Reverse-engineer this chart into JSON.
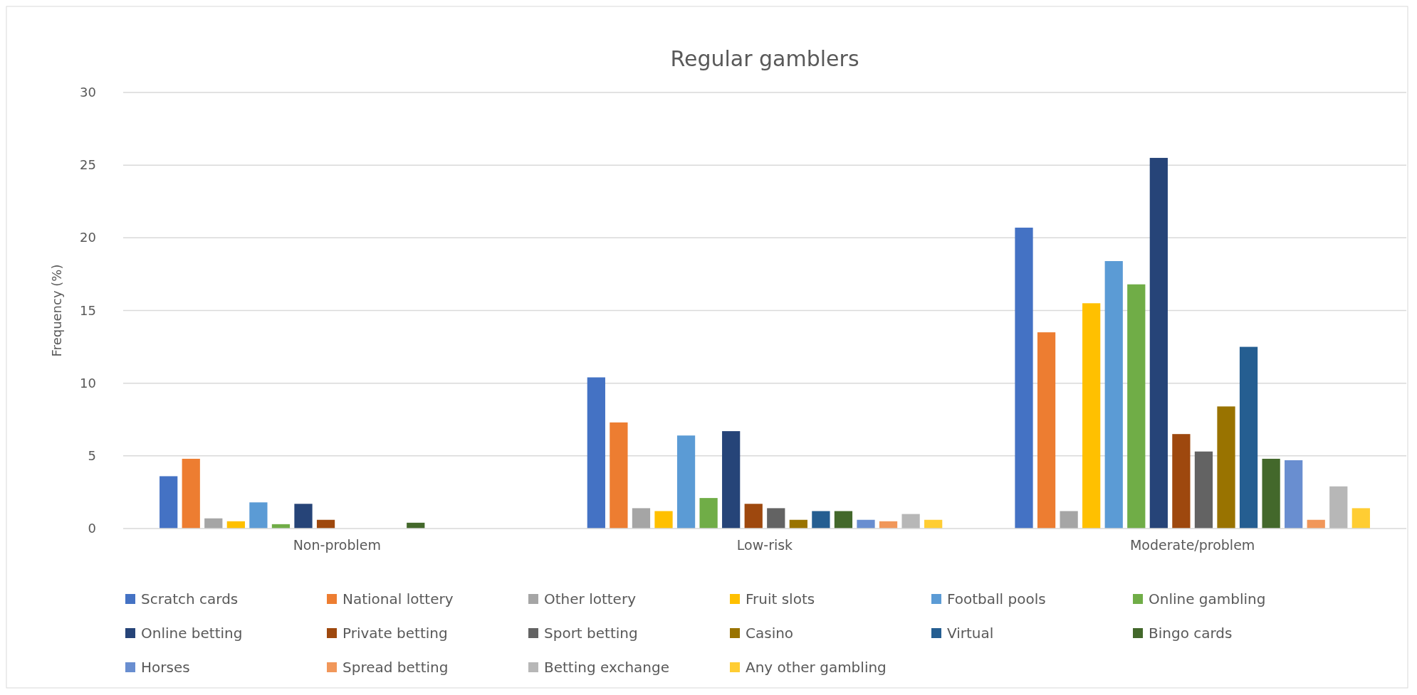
{
  "chart_data": {
    "type": "bar",
    "title": "Regular gamblers",
    "ylabel": "Frequency (%)",
    "categories": [
      "Non-problem",
      "Low-risk",
      "Moderate/problem"
    ],
    "series": [
      {
        "name": "Scratch cards",
        "color": "#4472c4",
        "values": [
          3.6,
          10.4,
          20.7
        ]
      },
      {
        "name": "National lottery",
        "color": "#ed7d31",
        "values": [
          4.8,
          7.3,
          13.5
        ]
      },
      {
        "name": "Other lottery",
        "color": "#a5a5a5",
        "values": [
          0.7,
          1.4,
          1.2
        ]
      },
      {
        "name": "Fruit slots",
        "color": "#ffc000",
        "values": [
          0.5,
          1.2,
          15.5
        ]
      },
      {
        "name": "Football pools",
        "color": "#5b9bd5",
        "values": [
          1.8,
          6.4,
          18.4
        ]
      },
      {
        "name": "Online gambling",
        "color": "#70ad47",
        "values": [
          0.3,
          2.1,
          16.8
        ]
      },
      {
        "name": "Online betting",
        "color": "#264478",
        "values": [
          1.7,
          6.7,
          25.5
        ]
      },
      {
        "name": "Private betting",
        "color": "#9e480e",
        "values": [
          0.6,
          1.7,
          6.5
        ]
      },
      {
        "name": "Sport betting",
        "color": "#636363",
        "values": [
          0,
          1.4,
          5.3
        ]
      },
      {
        "name": "Casino",
        "color": "#997300",
        "values": [
          0,
          0.6,
          8.4
        ]
      },
      {
        "name": "Virtual",
        "color": "#255e91",
        "values": [
          0,
          1.2,
          12.5
        ]
      },
      {
        "name": "Bingo cards",
        "color": "#43682b",
        "values": [
          0.4,
          1.2,
          4.8
        ]
      },
      {
        "name": "Horses",
        "color": "#698ed0",
        "values": [
          0,
          0.6,
          4.7
        ]
      },
      {
        "name": "Spread betting",
        "color": "#f1975a",
        "values": [
          0,
          0.5,
          0.6
        ]
      },
      {
        "name": "Betting exchange",
        "color": "#b7b7b7",
        "values": [
          0,
          1.0,
          2.9
        ]
      },
      {
        "name": "Any other gambling",
        "color": "#ffcd33",
        "values": [
          0,
          0.6,
          1.4
        ]
      }
    ],
    "ylim": [
      0,
      30
    ],
    "yticks": [
      0,
      5,
      10,
      15,
      20,
      25,
      30
    ],
    "grid": "y",
    "legend": "bottom"
  }
}
